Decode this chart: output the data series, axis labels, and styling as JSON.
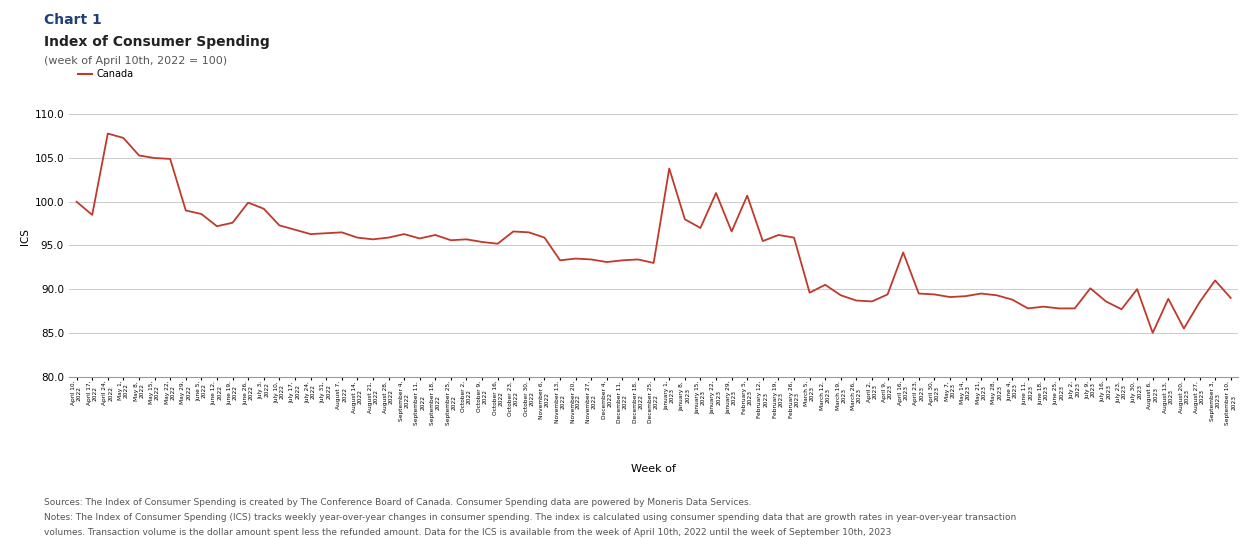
{
  "title_chart": "Chart 1",
  "title_main": "Index of Consumer Spending",
  "title_sub": "(week of April 10th, 2022 = 100)",
  "ylabel": "ICS",
  "xlabel": "Week of",
  "legend_label": "Canada",
  "line_color": "#c0392b",
  "background_color": "#ffffff",
  "grid_color": "#cccccc",
  "ylim": [
    80.0,
    112.0
  ],
  "yticks": [
    80.0,
    85.0,
    90.0,
    95.0,
    100.0,
    105.0,
    110.0
  ],
  "title_chart_color": "#1f3f7a",
  "footnote_line1": "Sources: The Index of Consumer Spending is created by The Conference Board of Canada. Consumer Spending data are powered by Moneris Data Services.",
  "footnote_line2": "Notes: The Index of Consumer Spending (ICS) tracks weekly year-over-year changes in consumer spending. The index is calculated using consumer spending data that are growth rates in year-over-year transaction",
  "footnote_line3": "volumes. Transaction volume is the dollar amount spent less the refunded amount. Data for the ICS is available from the week of April 10th, 2022 until the week of September 10th, 2023",
  "values": [
    100.0,
    98.5,
    107.8,
    107.3,
    105.3,
    105.0,
    104.9,
    99.0,
    98.6,
    97.2,
    97.6,
    99.9,
    99.2,
    97.3,
    96.8,
    96.3,
    96.4,
    96.5,
    95.9,
    95.7,
    95.9,
    96.3,
    95.8,
    96.2,
    95.6,
    95.7,
    95.4,
    95.2,
    96.6,
    96.5,
    95.9,
    93.3,
    93.5,
    93.4,
    93.1,
    93.3,
    93.4,
    93.0,
    103.8,
    98.0,
    97.0,
    101.0,
    96.6,
    100.7,
    95.5,
    96.2,
    95.9,
    89.6,
    90.5,
    89.3,
    88.7,
    88.6,
    89.4,
    94.2,
    89.5,
    89.4,
    89.1,
    89.2,
    89.5,
    89.3,
    88.8,
    87.8,
    88.0,
    87.8,
    87.8,
    90.1,
    88.6,
    87.7,
    90.0,
    85.0,
    88.9,
    85.5,
    88.5,
    91.0,
    89.0
  ],
  "xtick_labels": [
    "April 10,\n2022",
    "April 17,\n2022",
    "April 24,\n2022",
    "May 1,\n2022",
    "May 8,\n2022",
    "May 15,\n2022",
    "May 22,\n2022",
    "May 29,\n2022",
    "June 5,\n2022",
    "June 12,\n2022",
    "June 19,\n2022",
    "June 26,\n2022",
    "July 3,\n2022",
    "July 10,\n2022",
    "July 17,\n2022",
    "July 24,\n2022",
    "July 31,\n2022",
    "August 7,\n2022",
    "August 14,\n2022",
    "August 21,\n2022",
    "August 28,\n2022",
    "September 4,\n2022",
    "September 11,\n2022",
    "September 18,\n2022",
    "September 25,\n2022",
    "October 2,\n2022",
    "October 9,\n2022",
    "October 16,\n2022",
    "October 23,\n2022",
    "October 30,\n2022",
    "November 6,\n2022",
    "November 13,\n2022",
    "November 20,\n2022",
    "November 27,\n2022",
    "December 4,\n2022",
    "December 11,\n2022",
    "December 18,\n2022",
    "December 25,\n2022",
    "January 1,\n2023",
    "January 8,\n2023",
    "January 15,\n2023",
    "January 22,\n2023",
    "January 29,\n2023",
    "February 5,\n2023",
    "February 12,\n2023",
    "February 19,\n2023",
    "February 26,\n2023",
    "March 5,\n2023",
    "March 12,\n2023",
    "March 19,\n2023",
    "March 26,\n2023",
    "April 2,\n2023",
    "April 9,\n2023",
    "April 16,\n2023",
    "April 23,\n2023",
    "April 30,\n2023",
    "May 7,\n2023",
    "May 14,\n2023",
    "May 21,\n2023",
    "May 28,\n2023",
    "June 4,\n2023",
    "June 11,\n2023",
    "June 18,\n2023",
    "June 25,\n2023",
    "July 2,\n2023",
    "July 9,\n2023",
    "July 16,\n2023",
    "July 23,\n2023",
    "July 30,\n2023",
    "August 6,\n2023",
    "August 13,\n2023",
    "August 20,\n2023",
    "August 27,\n2023",
    "September 3,\n2023",
    "September 10,\n2023"
  ]
}
